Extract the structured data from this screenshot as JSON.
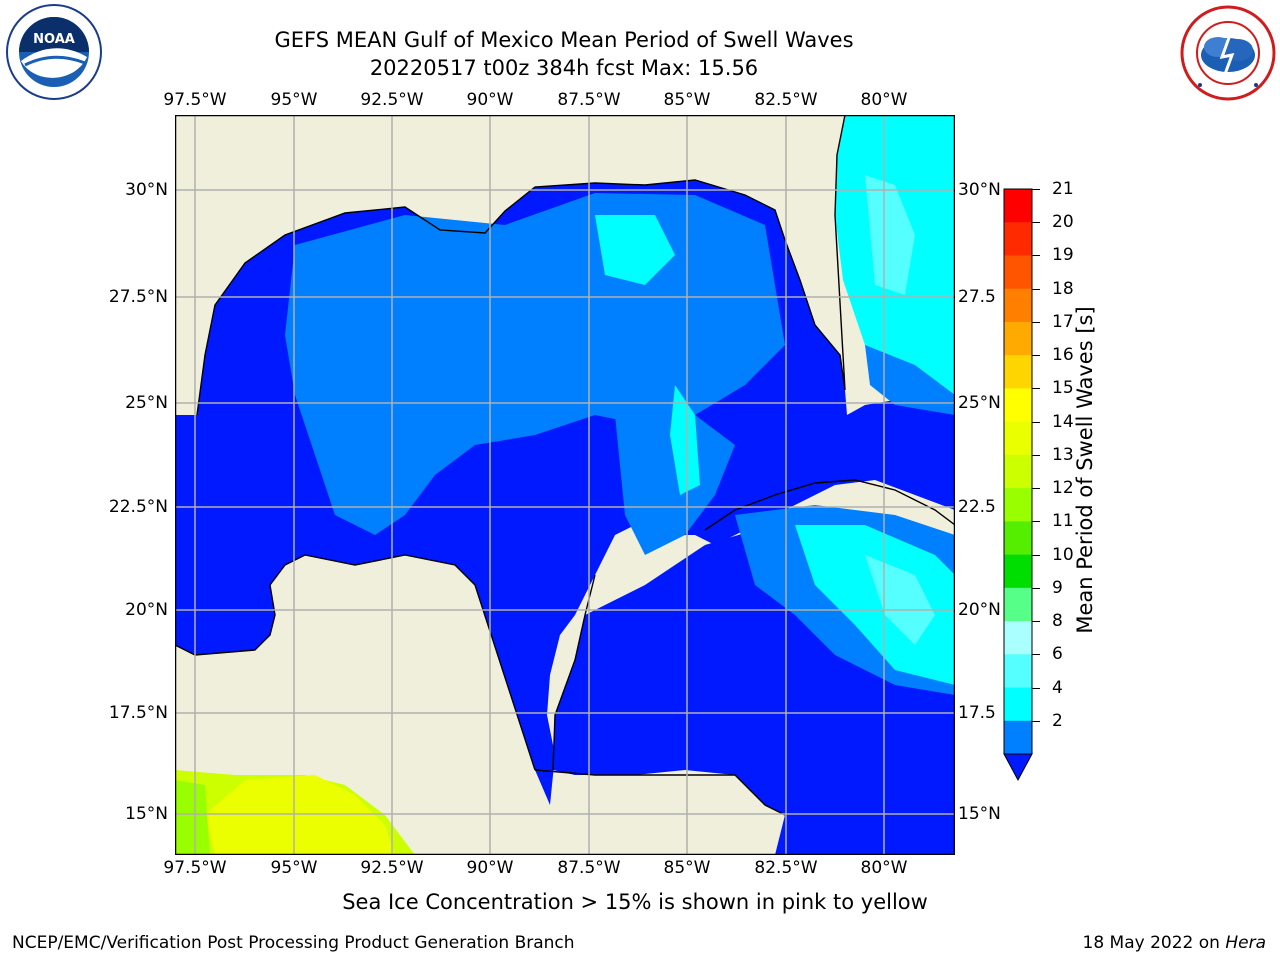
{
  "header": {
    "title_line1": "GEFS MEAN Gulf of Mexico Mean Period of Swell Waves",
    "title_line2": "20220517 t00z 384h fcst   Max: 15.56"
  },
  "logos": {
    "noaa_text": "NOAA",
    "noaa_ring": "NATIONAL OCEANIC AND ATMOSPHERIC ADMINISTRATION · U.S. DEPARTMENT OF COMMERCE",
    "nws_ring": "NATIONAL WEATHER SERVICE"
  },
  "map": {
    "lon_labels": [
      "97.5°W",
      "95°W",
      "92.5°W",
      "90°W",
      "87.5°W",
      "85°W",
      "82.5°W",
      "80°W"
    ],
    "lat_labels_left": [
      "30°N",
      "27.5°N",
      "25°N",
      "22.5°N",
      "20°N",
      "17.5°N",
      "15°N"
    ],
    "lat_labels_right": [
      "30°N",
      "27.5",
      "25°N",
      "22.5",
      "20°N",
      "17.5",
      "15°N"
    ],
    "colors": {
      "land": "#efefdc",
      "sea_2_4": "#0019ff",
      "sea_4_6": "#0080ff",
      "sea_6_8": "#00ffff",
      "sea_8_9": "#55ffff",
      "sea_14": "#ccff00",
      "sea_15": "#ecff00",
      "sea_13": "#99ff00",
      "grid": "#b0b0b0"
    }
  },
  "colorbar": {
    "label": "Mean Period of Swell Waves [s]",
    "ticks": [
      "21",
      "20",
      "19",
      "18",
      "17",
      "16",
      "15",
      "14",
      "13",
      "12",
      "11",
      "10",
      "9",
      "8",
      "6",
      "4",
      "2"
    ],
    "colors_top_to_bottom": [
      "#ff0000",
      "#ff2a00",
      "#ff5500",
      "#ff8000",
      "#ffaa00",
      "#ffd500",
      "#ffff00",
      "#eaff00",
      "#ccff00",
      "#99ff00",
      "#55ee00",
      "#00dd00",
      "#55ff88",
      "#aaffff",
      "#55ffff",
      "#00ffff",
      "#0080ff"
    ],
    "extend_color": "#0019ff"
  },
  "note": "Sea Ice Concentration > 15% is shown in pink to yellow",
  "footer": {
    "left": "NCEP/EMC/Verification Post Processing Product Generation Branch",
    "date": "18 May 2022 on ",
    "machine": "Hera"
  }
}
